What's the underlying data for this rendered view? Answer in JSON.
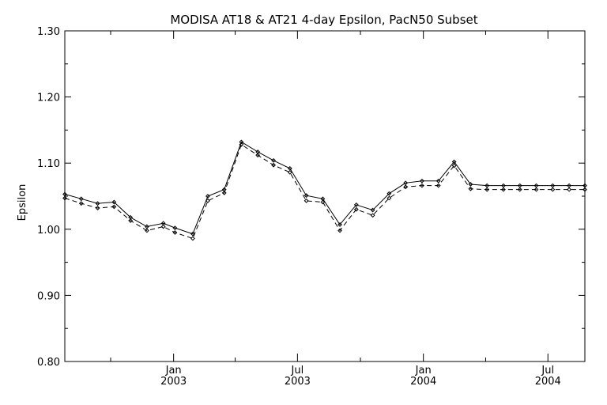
{
  "chart_data": {
    "type": "line",
    "title": "MODISA AT18 & AT21 4-day Epsilon, PacN50 Subset",
    "xlabel": "",
    "ylabel": "Epsilon",
    "ylim": [
      0.8,
      1.3
    ],
    "yticks": [
      "0.80",
      "0.90",
      "1.00",
      "1.10",
      "1.20",
      "1.30"
    ],
    "xlim": [
      "2002-07-26",
      "2004-08-24"
    ],
    "xticks": [
      {
        "date": "2003-01-01",
        "line1": "Jan",
        "line2": "2003"
      },
      {
        "date": "2003-07-01",
        "line1": "Jul",
        "line2": "2003"
      },
      {
        "date": "2004-01-01",
        "line1": "Jan",
        "line2": "2004"
      },
      {
        "date": "2004-07-01",
        "line1": "Jul",
        "line2": "2004"
      }
    ],
    "minor_ticks": [
      "2002-10-01",
      "2003-04-01",
      "2003-10-01",
      "2004-04-01"
    ],
    "grid": false,
    "series": [
      {
        "style": "solid",
        "x": [
          "2002-07-26",
          "2002-08-19",
          "2002-09-12",
          "2002-10-06",
          "2002-10-30",
          "2002-11-23",
          "2002-12-17",
          "2003-01-03",
          "2003-01-29",
          "2003-02-20",
          "2003-03-16",
          "2003-04-10",
          "2003-05-04",
          "2003-05-27",
          "2003-06-20",
          "2003-07-14",
          "2003-08-07",
          "2003-09-01",
          "2003-09-25",
          "2003-10-19",
          "2003-11-12",
          "2003-12-06",
          "2003-12-30",
          "2004-01-23",
          "2004-02-15",
          "2004-03-10",
          "2004-04-03",
          "2004-04-27",
          "2004-05-21",
          "2004-06-14",
          "2004-07-08",
          "2004-08-01",
          "2004-08-24"
        ],
        "y": [
          1.053,
          1.046,
          1.039,
          1.041,
          1.018,
          1.004,
          1.009,
          1.002,
          0.993,
          1.05,
          1.06,
          1.132,
          1.117,
          1.104,
          1.092,
          1.051,
          1.046,
          1.007,
          1.037,
          1.029,
          1.054,
          1.07,
          1.073,
          1.073,
          1.102,
          1.068,
          1.066,
          1.066,
          1.066,
          1.066,
          1.066,
          1.066,
          1.066
        ]
      },
      {
        "style": "dashed",
        "x": [
          "2002-07-26",
          "2002-08-19",
          "2002-09-12",
          "2002-10-06",
          "2002-10-30",
          "2002-11-23",
          "2002-12-17",
          "2003-01-03",
          "2003-01-29",
          "2003-02-20",
          "2003-03-16",
          "2003-04-10",
          "2003-05-04",
          "2003-05-27",
          "2003-06-20",
          "2003-07-14",
          "2003-08-07",
          "2003-09-01",
          "2003-09-25",
          "2003-10-19",
          "2003-11-12",
          "2003-12-06",
          "2003-12-30",
          "2004-01-23",
          "2004-02-15",
          "2004-03-10",
          "2004-04-03",
          "2004-04-27",
          "2004-05-21",
          "2004-06-14",
          "2004-07-08",
          "2004-08-01",
          "2004-08-24"
        ],
        "y": [
          1.047,
          1.039,
          1.032,
          1.034,
          1.013,
          0.998,
          1.004,
          0.995,
          0.986,
          1.043,
          1.055,
          1.128,
          1.112,
          1.097,
          1.086,
          1.043,
          1.041,
          0.998,
          1.03,
          1.021,
          1.047,
          1.064,
          1.066,
          1.066,
          1.096,
          1.061,
          1.06,
          1.06,
          1.06,
          1.06,
          1.06,
          1.06,
          1.06
        ]
      }
    ]
  }
}
